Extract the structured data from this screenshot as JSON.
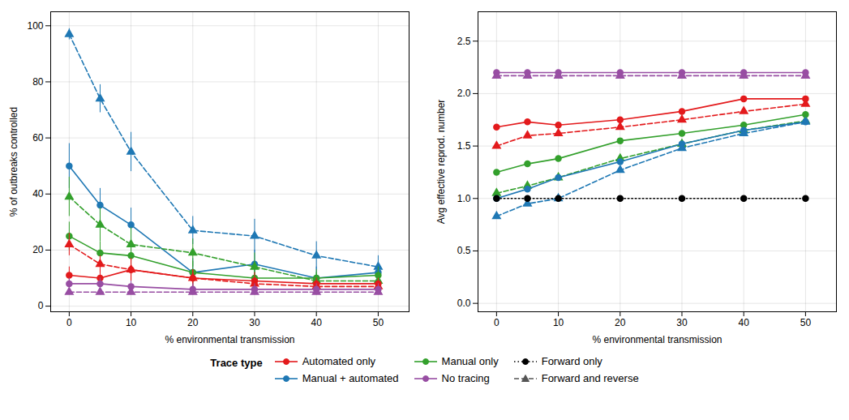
{
  "chart_data": [
    {
      "type": "line",
      "xlabel": "% environmental transmission",
      "ylabel": "% of outbreaks controlled",
      "x": [
        0,
        5,
        10,
        20,
        30,
        40,
        50
      ],
      "xlim": [
        -3,
        55
      ],
      "ylim": [
        -2,
        105
      ],
      "xticks": [
        0,
        10,
        20,
        30,
        40,
        50
      ],
      "yticks": [
        0,
        20,
        40,
        60,
        80,
        100
      ],
      "grid": true,
      "series": [
        {
          "color": "#1f78b4",
          "line_style": "solid",
          "marker": "circle",
          "values": [
            50,
            36,
            29,
            12,
            15,
            10,
            12
          ],
          "yerr": [
            8,
            6,
            6,
            5,
            5,
            4,
            4
          ]
        },
        {
          "color": "#1f78b4",
          "line_style": "dashed",
          "marker": "triangle",
          "values": [
            97,
            74,
            55,
            27,
            25,
            18,
            14
          ],
          "yerr": [
            2,
            5,
            7,
            5,
            6,
            5,
            4
          ]
        },
        {
          "color": "#33a02c",
          "line_style": "solid",
          "marker": "circle",
          "values": [
            25,
            19,
            18,
            12,
            10,
            10,
            11
          ],
          "yerr": [
            5,
            4,
            5,
            4,
            3,
            3,
            3
          ]
        },
        {
          "color": "#33a02c",
          "line_style": "dashed",
          "marker": "triangle",
          "values": [
            39,
            29,
            22,
            19,
            14,
            9,
            9
          ],
          "yerr": [
            7,
            6,
            6,
            5,
            5,
            3,
            3
          ]
        },
        {
          "color": "#e31a1c",
          "line_style": "solid",
          "marker": "circle",
          "values": [
            11,
            10,
            13,
            10,
            9,
            8,
            8
          ],
          "yerr": [
            3,
            3,
            4,
            3,
            3,
            2,
            2
          ]
        },
        {
          "color": "#e31a1c",
          "line_style": "dashed",
          "marker": "triangle",
          "values": [
            22,
            15,
            13,
            10,
            8,
            7,
            7
          ],
          "yerr": [
            4,
            3,
            4,
            3,
            2,
            2,
            2
          ]
        },
        {
          "color": "#984ea3",
          "line_style": "solid",
          "marker": "circle",
          "values": [
            8,
            8,
            7,
            6,
            6,
            6,
            6
          ],
          "yerr": [
            2,
            2,
            2,
            2,
            2,
            2,
            2
          ]
        },
        {
          "color": "#984ea3",
          "line_style": "dashed",
          "marker": "triangle",
          "values": [
            5,
            5,
            5,
            5,
            5,
            5,
            5
          ],
          "yerr": [
            1,
            1,
            1,
            1,
            1,
            1,
            1
          ]
        }
      ]
    },
    {
      "type": "line",
      "xlabel": "% environmental transmission",
      "ylabel": "Avg effective reprod. number",
      "x": [
        0,
        5,
        10,
        20,
        30,
        40,
        50
      ],
      "xlim": [
        -3,
        55
      ],
      "ylim": [
        -0.08,
        2.78
      ],
      "xticks": [
        0,
        10,
        20,
        30,
        40,
        50
      ],
      "yticks": [
        {
          "value": 0,
          "label": "0.0"
        },
        0.5,
        {
          "value": 1,
          "label": "1.0"
        },
        1.5,
        {
          "value": 2,
          "label": "2.0"
        },
        2.5
      ],
      "grid": true,
      "series": [
        {
          "color": "#984ea3",
          "line_style": "solid",
          "marker": "circle",
          "values": [
            2.2,
            2.2,
            2.2,
            2.2,
            2.2,
            2.2,
            2.2
          ]
        },
        {
          "color": "#984ea3",
          "line_style": "dashed",
          "marker": "triangle",
          "values": [
            2.17,
            2.17,
            2.17,
            2.17,
            2.17,
            2.17,
            2.17
          ]
        },
        {
          "color": "#e31a1c",
          "line_style": "solid",
          "marker": "circle",
          "values": [
            1.68,
            1.73,
            1.7,
            1.75,
            1.83,
            1.95,
            1.95
          ]
        },
        {
          "color": "#e31a1c",
          "line_style": "dashed",
          "marker": "triangle",
          "values": [
            1.5,
            1.6,
            1.62,
            1.68,
            1.75,
            1.83,
            1.9
          ]
        },
        {
          "color": "#33a02c",
          "line_style": "solid",
          "marker": "circle",
          "values": [
            1.25,
            1.33,
            1.38,
            1.55,
            1.62,
            1.7,
            1.8
          ]
        },
        {
          "color": "#33a02c",
          "line_style": "dashed",
          "marker": "triangle",
          "values": [
            1.05,
            1.12,
            1.2,
            1.38,
            1.52,
            1.65,
            1.74
          ]
        },
        {
          "color": "#1f78b4",
          "line_style": "solid",
          "marker": "circle",
          "values": [
            1.0,
            1.09,
            1.2,
            1.35,
            1.52,
            1.65,
            1.73
          ]
        },
        {
          "color": "#1f78b4",
          "line_style": "dashed",
          "marker": "triangle",
          "values": [
            0.83,
            0.95,
            1.0,
            1.27,
            1.48,
            1.62,
            1.73
          ]
        },
        {
          "color": "#000000",
          "line_style": "dotted",
          "marker": "circle",
          "values": [
            1.0,
            1.0,
            1.0,
            1.0,
            1.0,
            1.0,
            1.0
          ]
        }
      ]
    }
  ],
  "legend_title": "Trace type",
  "legend_entries": [
    {
      "name": "Automated only",
      "color": "#e31a1c",
      "line_style": "solid",
      "marker": "circle"
    },
    {
      "name": "Manual only",
      "color": "#33a02c",
      "line_style": "solid",
      "marker": "circle"
    },
    {
      "name": "Forward only",
      "color": "#000000",
      "line_style": "dotted",
      "marker": "circle"
    },
    {
      "name": "Manual + automated",
      "color": "#1f78b4",
      "line_style": "solid",
      "marker": "circle"
    },
    {
      "name": "No tracing",
      "color": "#984ea3",
      "line_style": "solid",
      "marker": "circle"
    },
    {
      "name": "Forward and reverse",
      "color": "#555555",
      "line_style": "dashed",
      "marker": "triangle"
    }
  ]
}
